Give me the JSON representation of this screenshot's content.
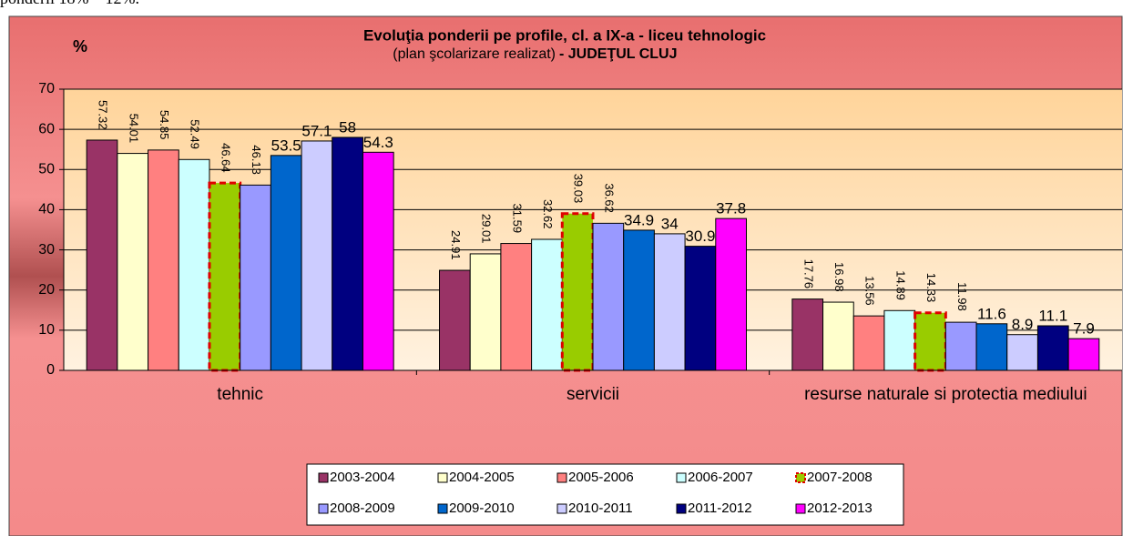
{
  "page_text": "ponderii 18% – 12%.",
  "chart_data": {
    "type": "bar",
    "title": "Evoluţia ponderii pe profile, cl.  a IX-a - liceu tehnologic",
    "subtitle": "(plan şcolarizare realizat)",
    "subtitle_bold": "- JUDEŢUL CLUJ",
    "y_label": "%",
    "categories": [
      "tehnic",
      "servicii",
      "resurse naturale si protectia mediului"
    ],
    "ylim": [
      0,
      70
    ],
    "yticks": [
      0,
      10,
      20,
      30,
      40,
      50,
      60,
      70
    ],
    "grid": true,
    "highlight_series": "2007-2008",
    "series": [
      {
        "name": "2003-2004",
        "color": "#993366",
        "values": [
          57.32,
          24.91,
          17.76
        ]
      },
      {
        "name": "2004-2005",
        "color": "#ffffcc",
        "values": [
          54.01,
          29.01,
          16.98
        ]
      },
      {
        "name": "2005-2006",
        "color": "#ff8080",
        "values": [
          54.85,
          31.59,
          13.56
        ]
      },
      {
        "name": "2006-2007",
        "color": "#ccffff",
        "values": [
          52.49,
          32.62,
          14.89
        ]
      },
      {
        "name": "2007-2008",
        "color": "#99cc00",
        "values": [
          46.64,
          39.03,
          14.33
        ]
      },
      {
        "name": "2008-2009",
        "color": "#9999ff",
        "values": [
          46.13,
          36.62,
          11.98
        ]
      },
      {
        "name": "2009-2010",
        "color": "#0066cc",
        "values": [
          53.5,
          34.9,
          11.6
        ]
      },
      {
        "name": "2010-2011",
        "color": "#ccccff",
        "values": [
          57.1,
          34,
          8.9
        ]
      },
      {
        "name": "2011-2012",
        "color": "#000080",
        "values": [
          58,
          30.9,
          11.1
        ]
      },
      {
        "name": "2012-2013",
        "color": "#ff00ff",
        "values": [
          54.3,
          37.8,
          7.9
        ]
      }
    ]
  }
}
